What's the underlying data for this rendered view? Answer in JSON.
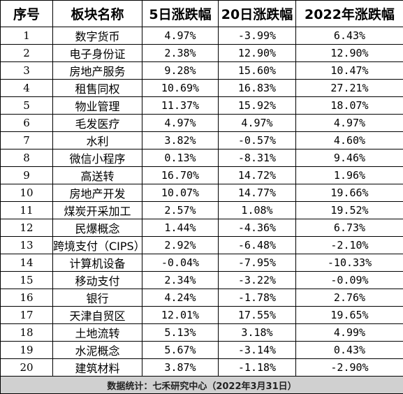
{
  "table": {
    "headers": [
      "序号",
      "板块名称",
      "5日涨跌幅",
      "20日涨跌幅",
      "2022年涨跌幅"
    ],
    "rows": [
      [
        "1",
        "数字货币",
        "4.97%",
        "-3.99%",
        "6.43%"
      ],
      [
        "2",
        "电子身份证",
        "2.38%",
        "12.90%",
        "12.90%"
      ],
      [
        "3",
        "房地产服务",
        "9.28%",
        "15.60%",
        "10.47%"
      ],
      [
        "4",
        "租售同权",
        "10.69%",
        "16.83%",
        "27.21%"
      ],
      [
        "5",
        "物业管理",
        "11.37%",
        "15.92%",
        "18.07%"
      ],
      [
        "6",
        "毛发医疗",
        "4.97%",
        "4.97%",
        "4.97%"
      ],
      [
        "7",
        "水利",
        "3.82%",
        "-0.57%",
        "4.60%"
      ],
      [
        "8",
        "微信小程序",
        "0.13%",
        "-8.31%",
        "9.46%"
      ],
      [
        "9",
        "高送转",
        "16.70%",
        "14.72%",
        "1.96%"
      ],
      [
        "10",
        "房地产开发",
        "10.07%",
        "14.77%",
        "19.66%"
      ],
      [
        "11",
        "煤炭开采加工",
        "2.57%",
        "1.08%",
        "19.52%"
      ],
      [
        "12",
        "民爆概念",
        "1.44%",
        "-4.36%",
        "6.73%"
      ],
      [
        "13",
        "跨境支付（CIPS）",
        "2.92%",
        "-6.48%",
        "-2.10%"
      ],
      [
        "14",
        "计算机设备",
        "-0.04%",
        "-7.95%",
        "-10.33%"
      ],
      [
        "15",
        "移动支付",
        "2.34%",
        "-3.22%",
        "-0.09%"
      ],
      [
        "16",
        "银行",
        "4.24%",
        "-1.78%",
        "2.76%"
      ],
      [
        "17",
        "天津自贸区",
        "12.01%",
        "17.55%",
        "19.65%"
      ],
      [
        "18",
        "土地流转",
        "5.13%",
        "3.18%",
        "4.99%"
      ],
      [
        "19",
        "水泥概念",
        "5.67%",
        "-3.14%",
        "0.43%"
      ],
      [
        "20",
        "建筑材料",
        "3.87%",
        "-1.18%",
        "-2.90%"
      ]
    ],
    "footer": "数据统计：七禾研究中心（2022年3月31日）"
  },
  "colors": {
    "border": "#000000",
    "footer_background": "#d0d0d0",
    "text": "#000000"
  }
}
